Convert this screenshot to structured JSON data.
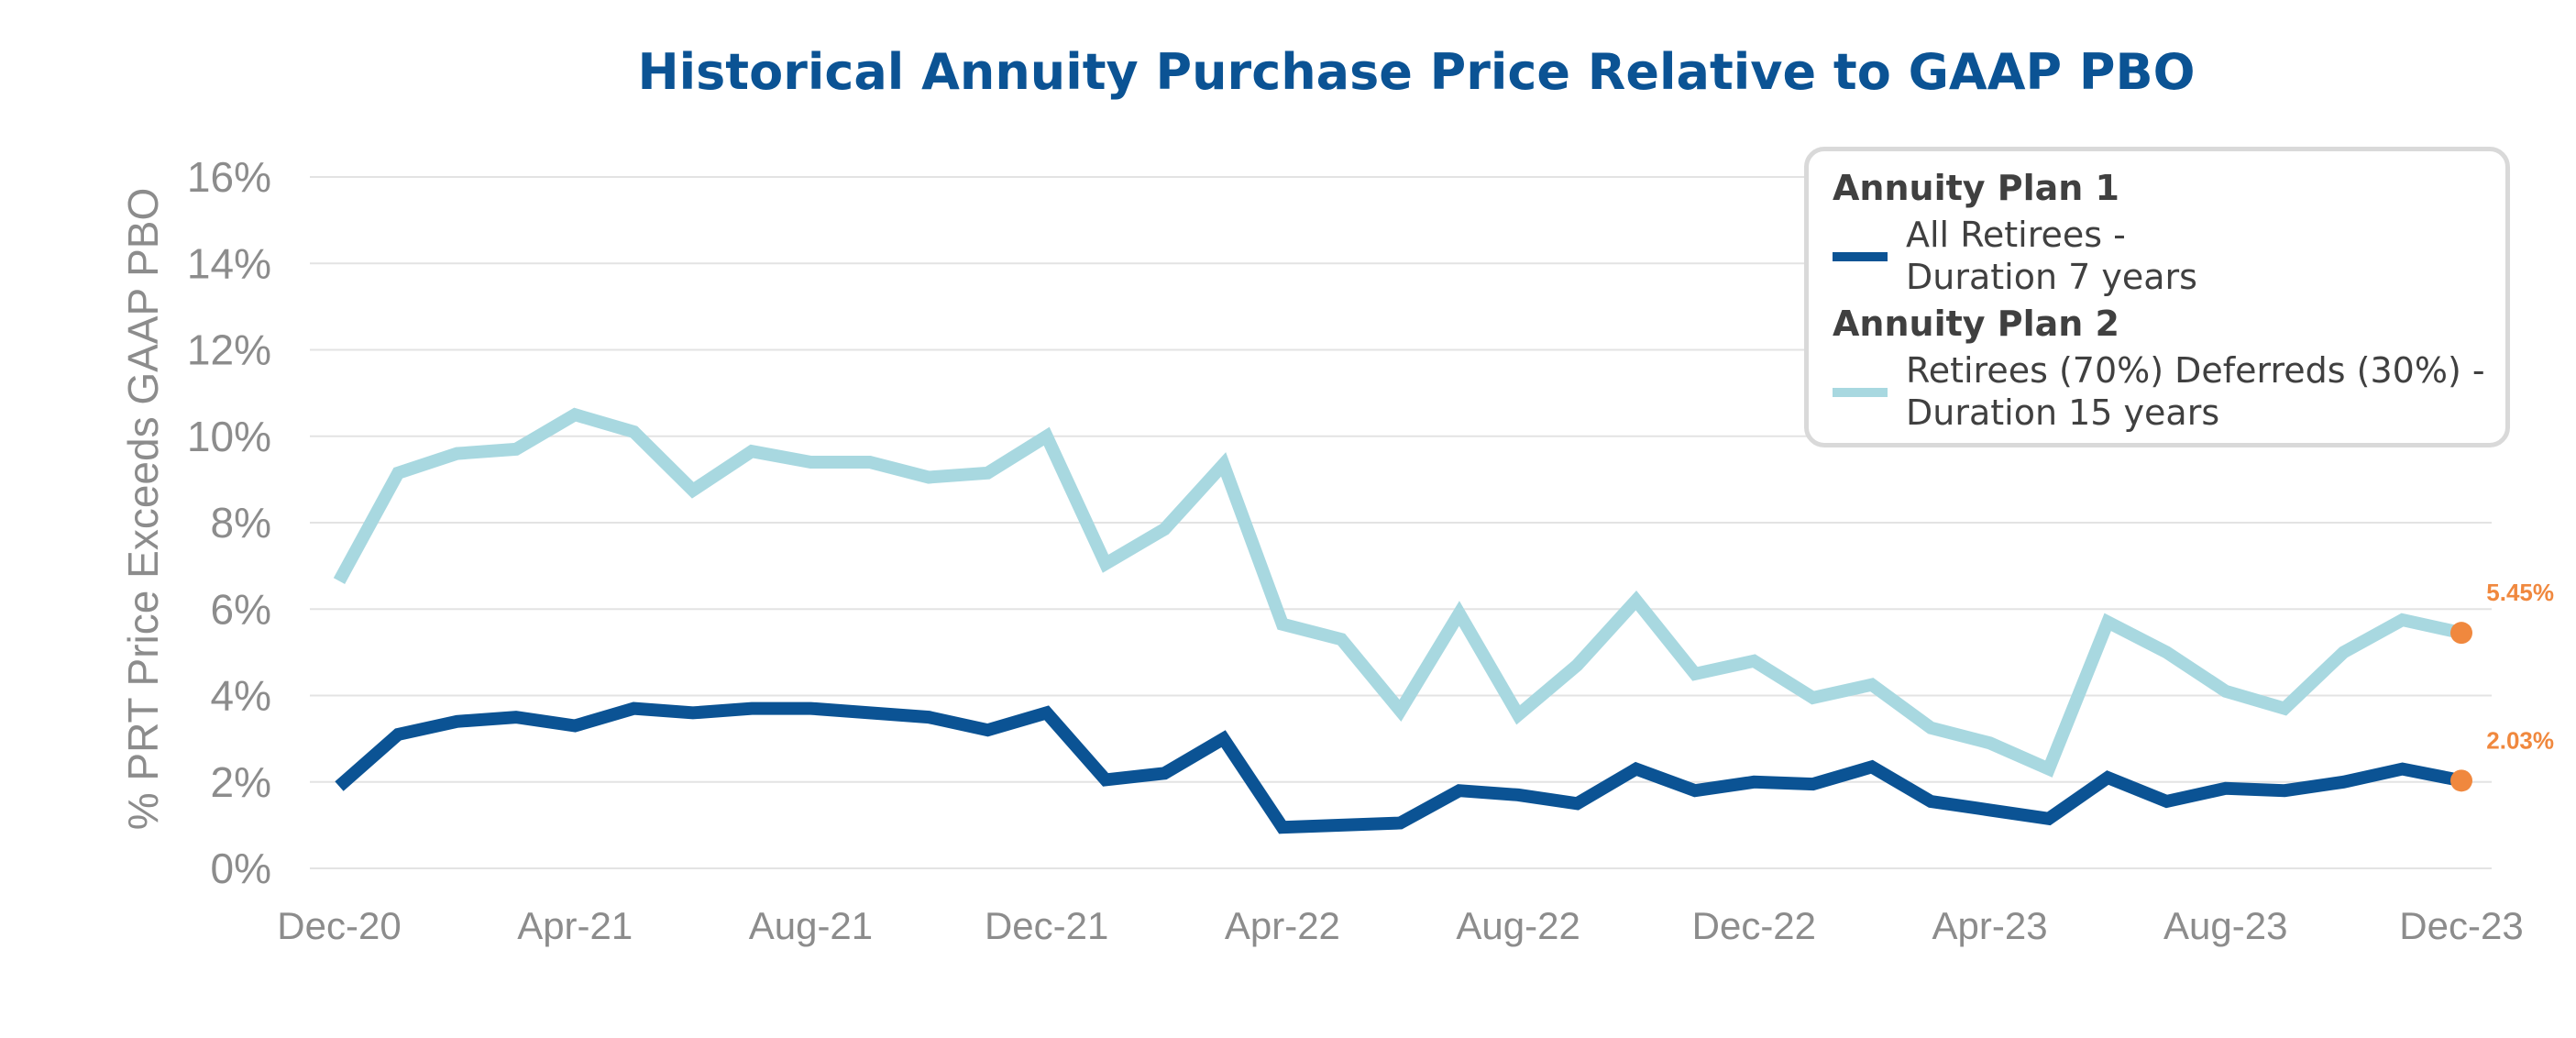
{
  "chart_data": {
    "type": "line",
    "title": "Historical Annuity Purchase Price Relative to GAAP PBO",
    "ylabel": "% PRT Price Exceeds GAAP PBO",
    "xlabel": "",
    "ylim": [
      0,
      16
    ],
    "yticks": [
      "0%",
      "2%",
      "4%",
      "6%",
      "8%",
      "10%",
      "12%",
      "14%",
      "16%"
    ],
    "ytick_values": [
      0,
      2,
      4,
      6,
      8,
      10,
      12,
      14,
      16
    ],
    "grid": true,
    "x": [
      "Dec-20",
      "Jan-21",
      "Feb-21",
      "Mar-21",
      "Apr-21",
      "May-21",
      "Jun-21",
      "Jul-21",
      "Aug-21",
      "Sep-21",
      "Oct-21",
      "Nov-21",
      "Dec-21",
      "Jan-22",
      "Feb-22",
      "Mar-22",
      "Apr-22",
      "May-22",
      "Jun-22",
      "Jul-22",
      "Aug-22",
      "Sep-22",
      "Oct-22",
      "Nov-22",
      "Dec-22",
      "Jan-23",
      "Feb-23",
      "Mar-23",
      "Apr-23",
      "May-23",
      "Jun-23",
      "Jul-23",
      "Aug-23",
      "Sep-23",
      "Oct-23",
      "Nov-23",
      "Dec-23"
    ],
    "xtick_labels": [
      "Dec-20",
      "Apr-21",
      "Aug-21",
      "Dec-21",
      "Apr-22",
      "Aug-22",
      "Dec-22",
      "Apr-23",
      "Aug-23",
      "Dec-23"
    ],
    "xtick_indices": [
      0,
      4,
      8,
      12,
      16,
      20,
      24,
      28,
      32,
      36
    ],
    "legend_position": "top-right",
    "series": [
      {
        "name": "Annuity Plan 1",
        "label_lines": [
          "All Retirees -",
          "Duration 7 years"
        ],
        "color": "#0b5394",
        "values": [
          1.9,
          3.1,
          3.4,
          3.5,
          3.3,
          3.7,
          3.6,
          3.7,
          3.7,
          3.6,
          3.5,
          3.2,
          3.6,
          2.05,
          2.2,
          3.0,
          0.95,
          1.0,
          1.05,
          1.8,
          1.7,
          1.5,
          2.3,
          1.8,
          2.0,
          1.95,
          2.35,
          1.55,
          1.35,
          1.15,
          2.1,
          1.55,
          1.85,
          1.8,
          2.0,
          2.3,
          2.03
        ],
        "end_label": "2.03%"
      },
      {
        "name": "Annuity Plan 2",
        "label_lines": [
          "Retirees (70%) Deferreds (30%) -",
          "Duration 15 years"
        ],
        "color": "#a8d8e0",
        "values": [
          6.65,
          9.15,
          9.6,
          9.7,
          10.5,
          10.1,
          8.75,
          9.65,
          9.4,
          9.4,
          9.05,
          9.15,
          10.0,
          7.05,
          7.85,
          9.35,
          5.65,
          5.3,
          3.65,
          5.9,
          3.55,
          4.7,
          6.2,
          4.5,
          4.8,
          3.95,
          4.25,
          3.25,
          2.9,
          2.3,
          5.7,
          5.0,
          4.1,
          3.7,
          5.0,
          5.75,
          5.45
        ],
        "end_label": "5.45%"
      }
    ],
    "marker_color": "#f0883e"
  }
}
